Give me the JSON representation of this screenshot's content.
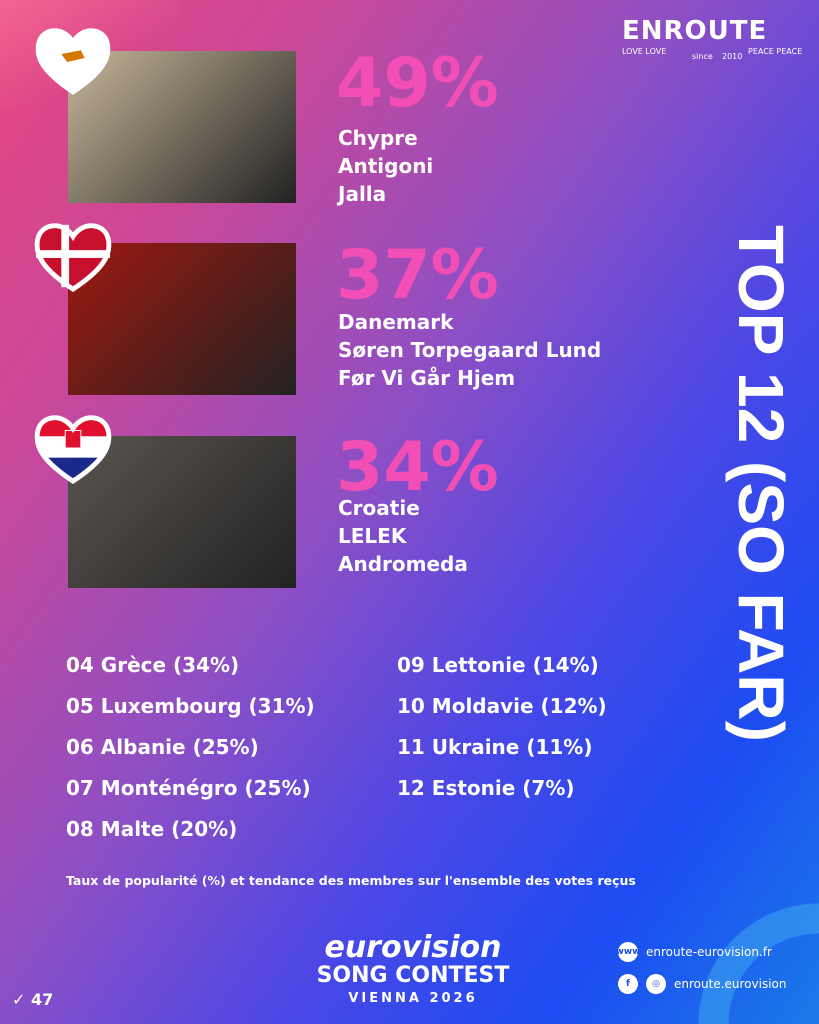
{
  "brand": {
    "logo_main": "ENROUTE",
    "tag_left": "LOVE LOVE",
    "tag_since": "since",
    "tag_year": "2010",
    "tag_right": "PEACE PEACE"
  },
  "title": "TOP 12 (SO FAR)",
  "top3": [
    {
      "flag": "cyprus",
      "percent": "49%",
      "country": "Chypre",
      "artist": "Antigoni",
      "song": "Jalla",
      "photo_color": "#c8b89a"
    },
    {
      "flag": "denmark",
      "percent": "37%",
      "country": "Danemark",
      "artist": "Søren Torpegaard Lund",
      "song": "Før Vi Går Hjem",
      "photo_color": "#a01810"
    },
    {
      "flag": "croatia",
      "percent": "34%",
      "country": "Croatie",
      "artist": "LELEK",
      "song": "Andromeda",
      "photo_color": "#5a5550"
    }
  ],
  "ranking_left": [
    "04 Grèce (34%)",
    "05 Luxembourg (31%)",
    "06 Albanie (25%)",
    "07 Monténégro (25%)",
    "08 Malte (20%)"
  ],
  "ranking_right": [
    "09 Lettonie (14%)",
    "10  Moldavie (12%)",
    "11  Ukraine (11%)",
    "12  Estonie (7%)"
  ],
  "note": "Taux de popularité (%) et tendance des membres sur l'ensemble des votes reçus",
  "event": {
    "line1": "eurovision",
    "line2": "SONG CONTEST",
    "line3": "VIENNA 2026"
  },
  "social": {
    "website": "enroute-eurovision.fr",
    "handle": "enroute.eurovision"
  },
  "counter": "47",
  "colors": {
    "accent": "#f24fb6",
    "bg_top": "#e8457e",
    "bg_bottom": "#1d4cf2"
  }
}
